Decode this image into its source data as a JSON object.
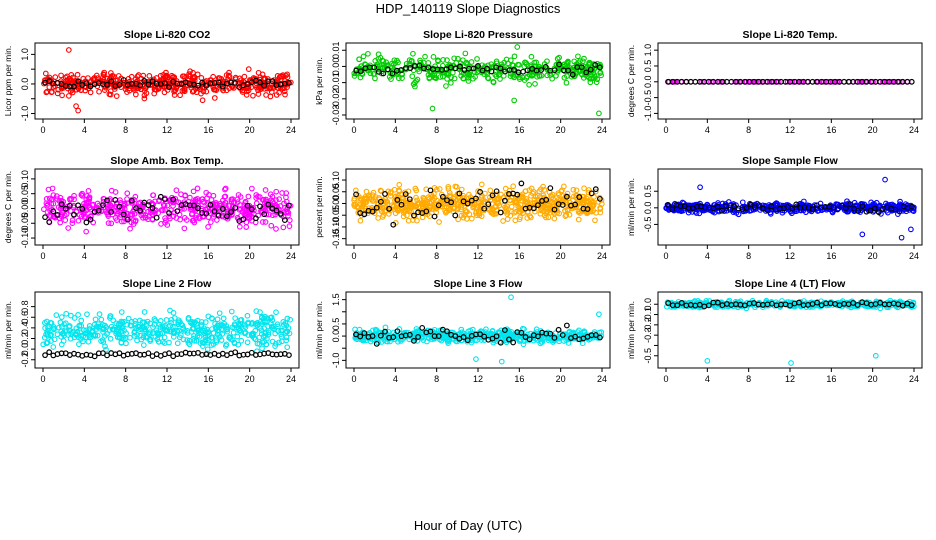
{
  "figure": {
    "title": "HDP_140119  Slope Diagnostics",
    "xlabel": "Hour of Day (UTC)"
  },
  "chart_data": [
    {
      "type": "scatter",
      "title": "Slope Li-820 CO2",
      "ylabel": "Licor ppm per min.",
      "color": "#ff0000",
      "xlim": [
        0,
        24
      ],
      "ylim": [
        -1.05,
        1.25
      ],
      "xticks": [
        0,
        4,
        8,
        12,
        16,
        20,
        24
      ],
      "yticks": [
        -1.0,
        -0.5,
        0.0,
        0.5,
        1.0
      ],
      "ytick_labels": [
        "-1.0",
        "",
        "0.0",
        "",
        "1.0"
      ],
      "colored_points": {
        "center": 0.0,
        "spread": 0.3,
        "count": 480,
        "outliers": [
          [
            2.5,
            1.15
          ],
          [
            3.4,
            -0.9
          ],
          [
            3.2,
            -0.75
          ]
        ]
      },
      "black_points": {
        "center": 0.0,
        "spread": 0.1,
        "count": 60
      }
    },
    {
      "type": "scatter",
      "title": "Slope Li-820 Pressure",
      "ylabel": "kPa per min.",
      "color": "#00cc00",
      "xlim": [
        0,
        24
      ],
      "ylim": [
        -0.03,
        0.012
      ],
      "xticks": [
        0,
        4,
        8,
        12,
        16,
        20,
        24
      ],
      "yticks": [
        -0.03,
        -0.02,
        -0.01,
        0.0,
        0.01
      ],
      "ytick_labels": [
        "-0.03",
        "-0.02",
        "-0.01",
        "0.00",
        "0.01"
      ],
      "colored_points": {
        "center": -0.002,
        "spread": 0.006,
        "count": 420,
        "outliers": [
          [
            7.6,
            -0.026
          ],
          [
            15.8,
            0.012
          ],
          [
            23.7,
            -0.029
          ],
          [
            15.5,
            -0.021
          ]
        ]
      },
      "black_points": {
        "center": -0.002,
        "spread": 0.003,
        "count": 55
      }
    },
    {
      "type": "scatter",
      "title": "Slope Li-820 Temp.",
      "ylabel": "degrees C per min.",
      "color": "#ff00ff",
      "xlim": [
        0,
        24
      ],
      "ylim": [
        -1.05,
        1.1
      ],
      "xticks": [
        0,
        4,
        8,
        12,
        16,
        20,
        24
      ],
      "yticks": [
        -1.0,
        -0.5,
        0.0,
        0.5,
        1.0
      ],
      "ytick_labels": [
        "-1.0",
        "-0.5",
        "0.0",
        "0.5",
        "1.0"
      ],
      "colored_points": {
        "center": 0.0,
        "spread": 0.0,
        "count": 110,
        "outliers": []
      },
      "black_points": {
        "center": 0.0,
        "spread": 0.0,
        "count": 55
      }
    },
    {
      "type": "scatter",
      "title": "Slope Amb. Box Temp.",
      "ylabel": "degrees C per min.",
      "color": "#ff00ff",
      "xlim": [
        0,
        24
      ],
      "ylim": [
        -0.11,
        0.12
      ],
      "xticks": [
        0,
        4,
        8,
        12,
        16,
        20,
        24
      ],
      "yticks": [
        -0.1,
        -0.05,
        0.0,
        0.05,
        0.1
      ],
      "ytick_labels": [
        "-0.10",
        "-0.05",
        "0.00",
        "0.05",
        "0.10"
      ],
      "colored_points": {
        "center": 0.0,
        "spread": 0.045,
        "count": 520,
        "outliers": []
      },
      "black_points": {
        "center": 0.0,
        "spread": 0.04,
        "count": 60
      }
    },
    {
      "type": "scatter",
      "title": "Slope Gas Stream RH",
      "ylabel": "percent per min.",
      "color": "#ffaa00",
      "xlim": [
        0,
        24
      ],
      "ylim": [
        -0.16,
        0.13
      ],
      "xticks": [
        0,
        4,
        8,
        12,
        16,
        20,
        24
      ],
      "yticks": [
        -0.15,
        -0.1,
        -0.05,
        0.0,
        0.05,
        0.1
      ],
      "ytick_labels": [
        "-0.15",
        "-0.10",
        "-0.05",
        "0.00",
        "0.05",
        "0.10"
      ],
      "colored_points": {
        "center": 0.0,
        "spread": 0.05,
        "count": 650,
        "outliers": []
      },
      "black_points": {
        "center": 0.0,
        "spread": 0.05,
        "count": 60
      }
    },
    {
      "type": "scatter",
      "title": "Slope Sample Flow",
      "ylabel": "ml/min per min.",
      "color": "#0000ff",
      "xlim": [
        0,
        24
      ],
      "ylim": [
        -1.0,
        1.05
      ],
      "xticks": [
        0,
        4,
        8,
        12,
        16,
        20,
        24
      ],
      "yticks": [
        -0.5,
        0.0,
        0.5
      ],
      "ytick_labels": [
        "-0.5",
        "0.0",
        "0.5"
      ],
      "colored_points": {
        "center": 0.0,
        "spread": 0.12,
        "count": 480,
        "outliers": [
          [
            3.3,
            0.62
          ],
          [
            21.2,
            0.85
          ],
          [
            22.8,
            -0.9
          ],
          [
            19.0,
            -0.8
          ],
          [
            23.7,
            -0.65
          ]
        ]
      },
      "black_points": {
        "center": 0.0,
        "spread": 0.08,
        "count": 60
      }
    },
    {
      "type": "scatter",
      "title": "Slope Line 2 Flow",
      "ylabel": "ml/min per min.",
      "color": "#00e5ee",
      "xlim": [
        0,
        24
      ],
      "ylim": [
        -0.28,
        1.0
      ],
      "xticks": [
        0,
        4,
        8,
        12,
        16,
        20,
        24
      ],
      "yticks": [
        -0.2,
        0.0,
        0.2,
        0.4,
        0.6,
        0.8
      ],
      "ytick_labels": [
        "-0.2",
        "0.0",
        "0.2",
        "0.4",
        "0.6",
        "0.8"
      ],
      "colored_points": {
        "center": 0.35,
        "spread": 0.25,
        "count": 480,
        "outliers": []
      },
      "black_points": {
        "center": -0.1,
        "spread": 0.03,
        "count": 60
      }
    },
    {
      "type": "scatter",
      "title": "Slope Line 3 Flow",
      "ylabel": "ml/min per min.",
      "color": "#00e5ee",
      "xlim": [
        0,
        24
      ],
      "ylim": [
        -1.15,
        1.65
      ],
      "xticks": [
        0,
        4,
        8,
        12,
        16,
        20,
        24
      ],
      "yticks": [
        -1.0,
        -0.5,
        0.0,
        0.5,
        1.0,
        1.5
      ],
      "ytick_labels": [
        "-1.0",
        "",
        "0.0",
        "0.5",
        "",
        "1.5"
      ],
      "colored_points": {
        "center": 0.0,
        "spread": 0.2,
        "count": 520,
        "outliers": [
          [
            15.2,
            1.6
          ],
          [
            14.3,
            -1.05
          ],
          [
            11.8,
            -0.95
          ],
          [
            23.7,
            0.9
          ]
        ]
      },
      "black_points": {
        "center": 0.0,
        "spread": 0.25,
        "count": 60
      }
    },
    {
      "type": "scatter",
      "title": "Slope Line 4 (LT) Flow",
      "ylabel": "ml/min per min.",
      "color": "#00e5ee",
      "xlim": [
        0,
        24
      ],
      "ylim": [
        -0.58,
        0.08
      ],
      "xticks": [
        0,
        4,
        8,
        12,
        16,
        20,
        24
      ],
      "yticks": [
        -0.5,
        -0.4,
        -0.3,
        -0.2,
        -0.1,
        0.0
      ],
      "ytick_labels": [
        "-0.5",
        "",
        "-0.3",
        "-0.2",
        "-0.1",
        "0.0"
      ],
      "colored_points": {
        "center": 0.0,
        "spread": 0.025,
        "count": 420,
        "outliers": [
          [
            4.0,
            -0.55
          ],
          [
            12.1,
            -0.57
          ],
          [
            20.3,
            -0.5
          ]
        ]
      },
      "black_points": {
        "center": 0.0,
        "spread": 0.015,
        "count": 55
      }
    }
  ]
}
